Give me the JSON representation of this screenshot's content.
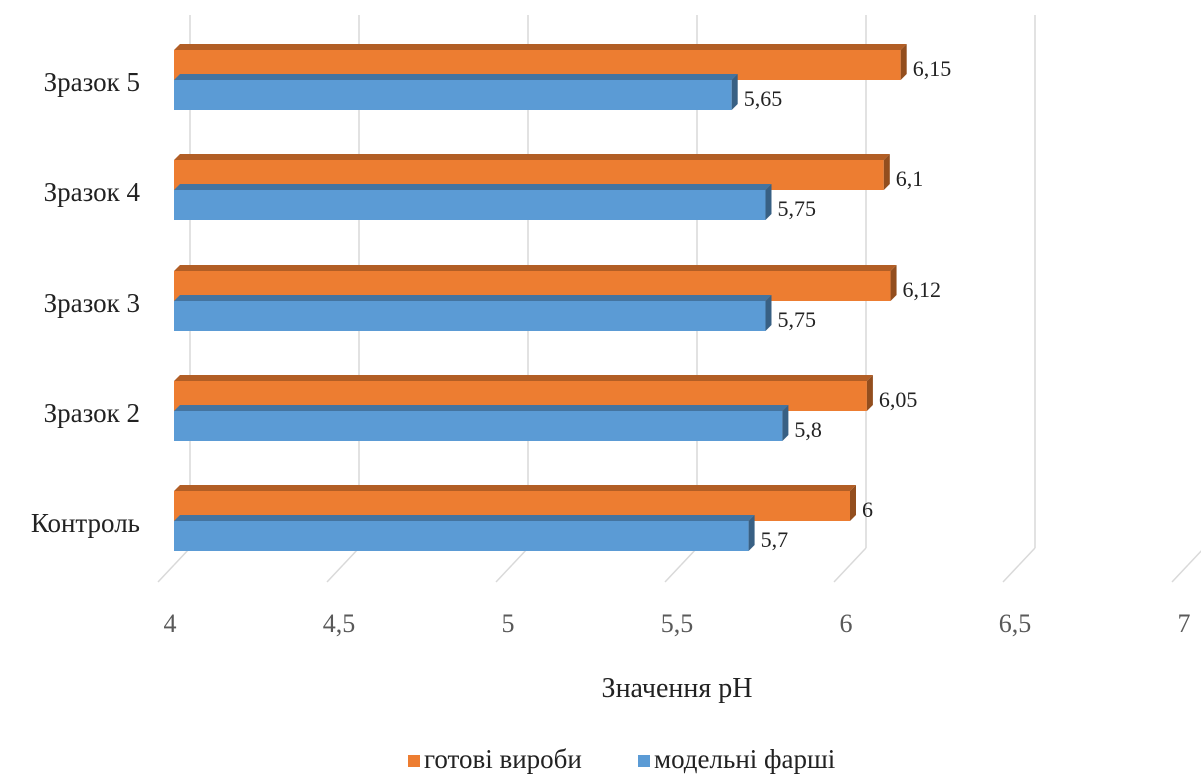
{
  "chart_data": {
    "type": "bar",
    "orientation": "horizontal",
    "style": "3d",
    "categories": [
      "Контроль",
      "Зразок 2",
      "Зразок 3",
      "Зразок 4",
      "Зразок 5"
    ],
    "series": [
      {
        "name": "модельні фарші",
        "color": "#5b9bd5",
        "values": [
          5.7,
          5.8,
          5.75,
          5.75,
          5.65
        ],
        "labels": [
          "5,7",
          "5,8",
          "5,75",
          "5,75",
          "5,65"
        ]
      },
      {
        "name": "готові вироби",
        "color": "#ed7d31",
        "values": [
          6,
          6.05,
          6.12,
          6.1,
          6.15
        ],
        "labels": [
          "6",
          "6,05",
          "6,12",
          "6,1",
          "6,15"
        ]
      }
    ],
    "xlabel": "Значення pH",
    "xlim": [
      4,
      7
    ],
    "ticks": [
      4,
      4.5,
      5,
      5.5,
      6,
      6.5,
      7
    ],
    "tick_labels": [
      "4",
      "4,5",
      "5",
      "5,5",
      "6",
      "6,5",
      "7"
    ],
    "grid": true,
    "legend": {
      "position": "bottom",
      "order": [
        "готові вироби",
        "модельні фарші"
      ]
    }
  }
}
